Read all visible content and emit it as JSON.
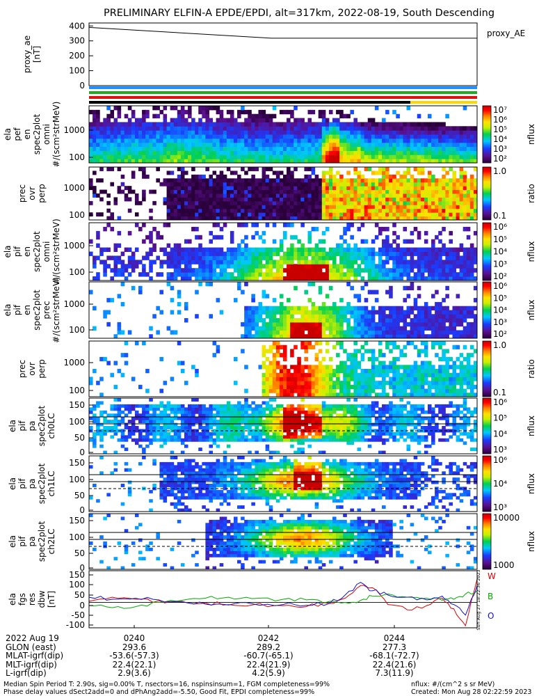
{
  "title": "PRELIMINARY ELFIN-A EPDE/EPDI, alt=317km, 2022-08-19, South Descending",
  "chart_data": [
    {
      "id": "proxy_ae",
      "type": "line",
      "ylabel": [
        "proxy_ae",
        "[nT]"
      ],
      "legend": "proxy_AE",
      "yticks": [
        0,
        100,
        200,
        300,
        400
      ],
      "ylim": [
        0,
        420
      ],
      "x": [
        0,
        0.47,
        1
      ],
      "y": [
        390,
        318,
        318
      ]
    },
    {
      "id": "status_bars",
      "type": "bar",
      "colors": [
        "#1e90ff",
        "#22aa22",
        "#dd1111",
        "#ffd700"
      ]
    },
    {
      "id": "ela_perp_en",
      "type": "heatmap",
      "ylabel": [
        "ela",
        "pef",
        "en",
        "spec2plot",
        "omni",
        "#/(scm²strMeV)"
      ],
      "yticks": [
        "1000",
        "100"
      ],
      "ylog": true,
      "colorbar": {
        "label": "nflux",
        "ticks": [
          "10⁷",
          "10⁶",
          "10⁵",
          "10⁴",
          "10³",
          "10²"
        ]
      }
    },
    {
      "id": "prec_ovr_perp_e",
      "type": "heatmap",
      "ylabel": [
        "prec",
        "ovr",
        "perp"
      ],
      "yticks": [
        "1000",
        "100"
      ],
      "colorbar": {
        "label": "ratio",
        "ticks": [
          "1.0",
          "0.1"
        ]
      }
    },
    {
      "id": "ela_pif_en_omni",
      "type": "heatmap",
      "ylabel": [
        "ela",
        "pif",
        "en",
        "spec2plot",
        "omni",
        "#/(scm²strMeV)"
      ],
      "yticks": [
        "1000",
        "100"
      ],
      "colorbar": {
        "label": "nflux",
        "ticks": [
          "10⁶",
          "10⁵",
          "10⁴",
          "10³",
          "10²"
        ]
      }
    },
    {
      "id": "ela_pif_en_prec",
      "type": "heatmap",
      "ylabel": [
        "ela",
        "pif",
        "en",
        "spec2plot",
        "prec",
        "#/(scm²strMeV)"
      ],
      "yticks": [
        "1000",
        "100"
      ],
      "colorbar": {
        "label": "nflux",
        "ticks": [
          "10⁶",
          "10⁵",
          "10⁴",
          "10³",
          "10²"
        ]
      }
    },
    {
      "id": "prec_ovr_perp_i",
      "type": "heatmap",
      "ylabel": [
        "prec",
        "ovr",
        "perp"
      ],
      "yticks": [
        "1000",
        "100"
      ],
      "colorbar": {
        "label": "ratio",
        "ticks": [
          "1.0",
          "0.1"
        ]
      }
    },
    {
      "id": "ela_pif_pa_ch0",
      "type": "heatmap",
      "ylabel": [
        "ela",
        "pif",
        "pa",
        "spec2plot",
        "ch0LC"
      ],
      "yticks": [
        "150",
        "100",
        "50",
        "0"
      ],
      "colorbar": {
        "label": "nflux",
        "ticks": [
          "10⁶",
          "10⁵",
          "10⁴",
          "10³"
        ]
      }
    },
    {
      "id": "ela_pif_pa_ch1",
      "type": "heatmap",
      "ylabel": [
        "ela",
        "pif",
        "pa",
        "spec2plot",
        "ch1LC"
      ],
      "yticks": [
        "150",
        "100",
        "50",
        "0"
      ],
      "colorbar": {
        "label": "nflux",
        "ticks": [
          "10⁶",
          "10⁴",
          "10³"
        ]
      }
    },
    {
      "id": "ela_pif_pa_ch2",
      "type": "heatmap",
      "ylabel": [
        "ela",
        "pif",
        "pa",
        "spec2plot",
        "ch2LC"
      ],
      "yticks": [
        "150",
        "100",
        "50",
        "0"
      ],
      "colorbar": {
        "label": "nflux",
        "ticks": [
          "10000",
          "1000"
        ]
      }
    },
    {
      "id": "ela_fgs_res_dbw",
      "type": "line",
      "ylabel": [
        "ela",
        "fgs",
        "res",
        "dbw",
        "[nT]"
      ],
      "yticks": [
        150,
        100,
        50,
        0,
        -50,
        -100
      ],
      "ylim": [
        -120,
        150
      ],
      "x": [
        0,
        0.06,
        0.12,
        0.18,
        0.24,
        0.3,
        0.36,
        0.42,
        0.5,
        0.56,
        0.62,
        0.66,
        0.7,
        0.73,
        0.77,
        0.82,
        0.87,
        0.91,
        0.94,
        0.97,
        1
      ],
      "series": [
        {
          "name": "W",
          "color": "#dd0000",
          "values": [
            5,
            25,
            15,
            8,
            5,
            -2,
            -10,
            -12,
            -15,
            -20,
            -5,
            20,
            80,
            70,
            -10,
            -35,
            -15,
            20,
            -30,
            -110,
            110
          ]
        },
        {
          "name": "B",
          "color": "#00aa00",
          "values": [
            -15,
            -25,
            -20,
            0,
            10,
            20,
            25,
            18,
            15,
            12,
            5,
            0,
            10,
            30,
            40,
            25,
            20,
            10,
            15,
            40,
            55
          ]
        },
        {
          "name": "O",
          "color": "#1111cc",
          "values": [
            25,
            15,
            20,
            12,
            2,
            -8,
            -12,
            -6,
            -10,
            -14,
            -4,
            35,
            95,
            55,
            35,
            25,
            12,
            30,
            -10,
            -60,
            80
          ]
        }
      ]
    }
  ],
  "side_stamp": "Sun Aug 27 18:22:36 2023",
  "time_axis": {
    "labels": [
      {
        "text": "2022 Aug 19",
        "x": 65
      },
      {
        "text": "0240",
        "x": 193
      },
      {
        "text": "0242",
        "x": 386
      },
      {
        "text": "0244",
        "x": 567
      }
    ]
  },
  "ephemeris": [
    {
      "label": "GLON (east)",
      "values": [
        "293.6",
        "289.2",
        "277.3"
      ]
    },
    {
      "label": "MLAT-igrf(dip)",
      "values": [
        "-53.6(-57.3)",
        "-60.7(-65.1)",
        "-68.1(-72.7)"
      ]
    },
    {
      "label": "MLT-igrf(dip)",
      "values": [
        "22.4(22.1)",
        "22.4(21.9)",
        "22.4(21.6)"
      ]
    },
    {
      "label": "L-igrf(dip)",
      "values": [
        "2.9(3.6)",
        "4.2(5.9)",
        "7.3(11.9)"
      ]
    }
  ],
  "footer": {
    "left": [
      "Median Spin Period T: 2.90s, sig=0.00% T, nsectors=16, nspinsinsum=1, FGM completeness=99%",
      "Phase delay values dSect2add=0 and dPhAng2add=-5.50, Good Fit, EPDI completeness=99%"
    ],
    "right": [
      "nflux: #/(cm^2 s sr MeV)",
      "Created: Mon Aug 28 02:22:59 2023"
    ]
  }
}
